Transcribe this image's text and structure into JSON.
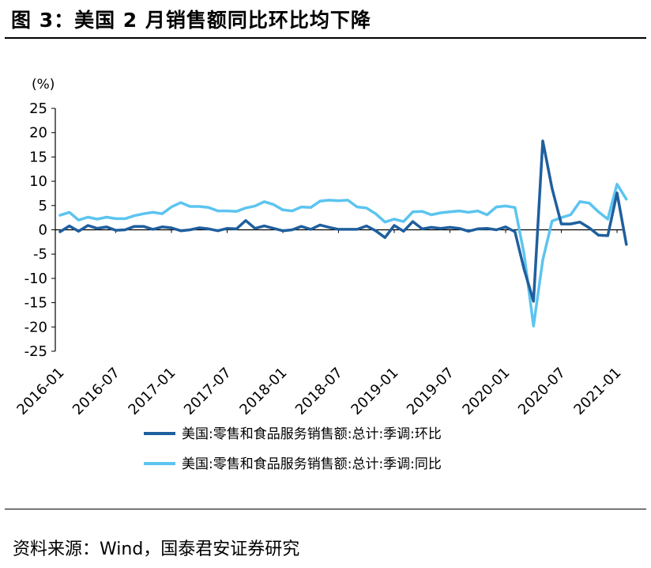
{
  "header": {
    "title": "图 3：美国 2 月销售额同比环比均下降"
  },
  "footer": {
    "source": "资料来源：Wind，国泰君安证券研究"
  },
  "colors": {
    "mom": "#1f5f9e",
    "yoy": "#5cc4ef"
  },
  "chart_data": {
    "type": "line",
    "title": "",
    "ylabel": "(%)",
    "xlabel": "",
    "ylim": [
      -25,
      25
    ],
    "yticks": [
      25,
      20,
      15,
      10,
      5,
      0,
      -5,
      -10,
      -15,
      -20,
      -25
    ],
    "xtick_labels": [
      "2016-01",
      "2016-07",
      "2017-01",
      "2017-07",
      "2018-01",
      "2018-07",
      "2019-01",
      "2019-07",
      "2020-01",
      "2020-07",
      "2021-01"
    ],
    "x": [
      "2016-01",
      "2016-02",
      "2016-03",
      "2016-04",
      "2016-05",
      "2016-06",
      "2016-07",
      "2016-08",
      "2016-09",
      "2016-10",
      "2016-11",
      "2016-12",
      "2017-01",
      "2017-02",
      "2017-03",
      "2017-04",
      "2017-05",
      "2017-06",
      "2017-07",
      "2017-08",
      "2017-09",
      "2017-10",
      "2017-11",
      "2017-12",
      "2018-01",
      "2018-02",
      "2018-03",
      "2018-04",
      "2018-05",
      "2018-06",
      "2018-07",
      "2018-08",
      "2018-09",
      "2018-10",
      "2018-11",
      "2018-12",
      "2019-01",
      "2019-02",
      "2019-03",
      "2019-04",
      "2019-05",
      "2019-06",
      "2019-07",
      "2019-08",
      "2019-09",
      "2019-10",
      "2019-11",
      "2019-12",
      "2020-01",
      "2020-02",
      "2020-03",
      "2020-04",
      "2020-05",
      "2020-06",
      "2020-07",
      "2020-08",
      "2020-09",
      "2020-10",
      "2020-11",
      "2020-12",
      "2021-01",
      "2021-02"
    ],
    "grid": false,
    "legend_position": "bottom",
    "series": [
      {
        "name": "美国:零售和食品服务销售额:总计:季调:环比",
        "values": [
          -0.4,
          0.8,
          -0.3,
          0.9,
          0.3,
          0.6,
          -0.1,
          0.0,
          0.7,
          0.7,
          0.1,
          0.6,
          0.4,
          -0.2,
          0.0,
          0.4,
          0.2,
          -0.2,
          0.3,
          0.2,
          1.9,
          0.3,
          0.8,
          0.3,
          -0.2,
          0.0,
          0.7,
          0.1,
          1.0,
          0.5,
          0.1,
          0.1,
          0.1,
          0.8,
          -0.2,
          -1.6,
          0.9,
          -0.3,
          1.7,
          0.2,
          0.5,
          0.3,
          0.5,
          0.3,
          -0.3,
          0.2,
          0.3,
          0.0,
          0.6,
          -0.4,
          -8.2,
          -14.7,
          18.3,
          8.5,
          1.2,
          1.2,
          1.6,
          0.4,
          -1.1,
          -1.2,
          7.6,
          -3.0
        ]
      },
      {
        "name": "美国:零售和食品服务销售额:总计:季调:同比",
        "values": [
          3.0,
          3.6,
          2.0,
          2.6,
          2.2,
          2.6,
          2.3,
          2.3,
          2.9,
          3.3,
          3.6,
          3.3,
          4.7,
          5.6,
          4.8,
          4.8,
          4.6,
          3.9,
          3.9,
          3.8,
          4.5,
          4.9,
          5.8,
          5.2,
          4.1,
          3.9,
          4.7,
          4.6,
          5.9,
          6.1,
          6.0,
          6.1,
          4.7,
          4.5,
          3.3,
          1.6,
          2.2,
          1.7,
          3.7,
          3.8,
          3.1,
          3.5,
          3.7,
          3.9,
          3.6,
          3.9,
          3.1,
          4.7,
          4.9,
          4.6,
          -5.1,
          -19.8,
          -6.2,
          1.8,
          2.5,
          3.1,
          5.8,
          5.5,
          3.7,
          2.2,
          9.4,
          6.3
        ]
      }
    ]
  }
}
